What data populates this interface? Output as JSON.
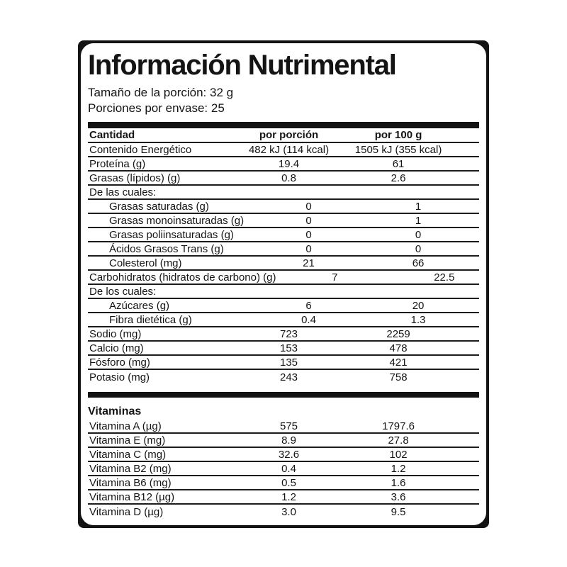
{
  "label": {
    "title": "Información Nutrimental",
    "serving_size_line": "Tamaño de la porción: 32 g",
    "servings_line": "Porciones por envase: 25",
    "colors": {
      "ink": "#141414",
      "background": "#ffffff",
      "rule": "#1c1c1c"
    },
    "table": {
      "headers": {
        "quantity": "Cantidad",
        "per_serving": "por porción",
        "per_100g": "por 100 g"
      },
      "rows": [
        {
          "name": "Contenido Energético",
          "per_serving": "482 kJ (114 kcal)",
          "per_100g": "1505 kJ (355 kcal)",
          "indent": false
        },
        {
          "name": "Proteína (g)",
          "per_serving": "19.4",
          "per_100g": "61",
          "indent": false
        },
        {
          "name": "Grasas (lípidos) (g)",
          "per_serving": "0.8",
          "per_100g": "2.6",
          "indent": false
        },
        {
          "name": "De las cuales:",
          "per_serving": "",
          "per_100g": "",
          "indent": false
        },
        {
          "name": "Grasas saturadas (g)",
          "per_serving": "0",
          "per_100g": "1",
          "indent": true
        },
        {
          "name": "Grasas monoinsaturadas (g)",
          "per_serving": "0",
          "per_100g": "1",
          "indent": true
        },
        {
          "name": "Grasas poliinsaturadas (g)",
          "per_serving": "0",
          "per_100g": "0",
          "indent": true
        },
        {
          "name": "Ácidos Grasos Trans (g)",
          "per_serving": "0",
          "per_100g": "0",
          "indent": true
        },
        {
          "name": "Colesterol (mg)",
          "per_serving": "21",
          "per_100g": "66",
          "indent": true
        },
        {
          "name": "Carbohidratos (hidratos de carbono) (g)",
          "per_serving": "7",
          "per_100g": "22.5",
          "indent": false
        },
        {
          "name": "De los cuales:",
          "per_serving": "",
          "per_100g": "",
          "indent": false
        },
        {
          "name": "Azúcares (g)",
          "per_serving": "6",
          "per_100g": "20",
          "indent": true
        },
        {
          "name": "Fibra dietética (g)",
          "per_serving": "0.4",
          "per_100g": "1.3",
          "indent": true
        },
        {
          "name": "Sodio (mg)",
          "per_serving": "723",
          "per_100g": "2259",
          "indent": false
        },
        {
          "name": "Calcio (mg)",
          "per_serving": "153",
          "per_100g": "478",
          "indent": false
        },
        {
          "name": "Fósforo (mg)",
          "per_serving": "135",
          "per_100g": "421",
          "indent": false
        },
        {
          "name": "Potasio (mg)",
          "per_serving": "243",
          "per_100g": "758",
          "indent": false
        }
      ]
    },
    "vitamins": {
      "heading": "Vitaminas",
      "rows": [
        {
          "name": "Vitamina A (µg)",
          "per_serving": "575",
          "per_100g": "1797.6",
          "indent": false
        },
        {
          "name": "Vitamina E (mg)",
          "per_serving": "8.9",
          "per_100g": "27.8",
          "indent": false
        },
        {
          "name": "Vitamina C (mg)",
          "per_serving": "32.6",
          "per_100g": "102",
          "indent": false
        },
        {
          "name": "Vitamina B2 (mg)",
          "per_serving": "0.4",
          "per_100g": "1.2",
          "indent": false
        },
        {
          "name": "Vitamina B6 (mg)",
          "per_serving": "0.5",
          "per_100g": "1.6",
          "indent": false
        },
        {
          "name": "Vitamina B12 (µg)",
          "per_serving": "1.2",
          "per_100g": "3.6",
          "indent": false
        },
        {
          "name": "Vitamina D (µg)",
          "per_serving": "3.0",
          "per_100g": "9.5",
          "indent": false
        }
      ]
    }
  }
}
